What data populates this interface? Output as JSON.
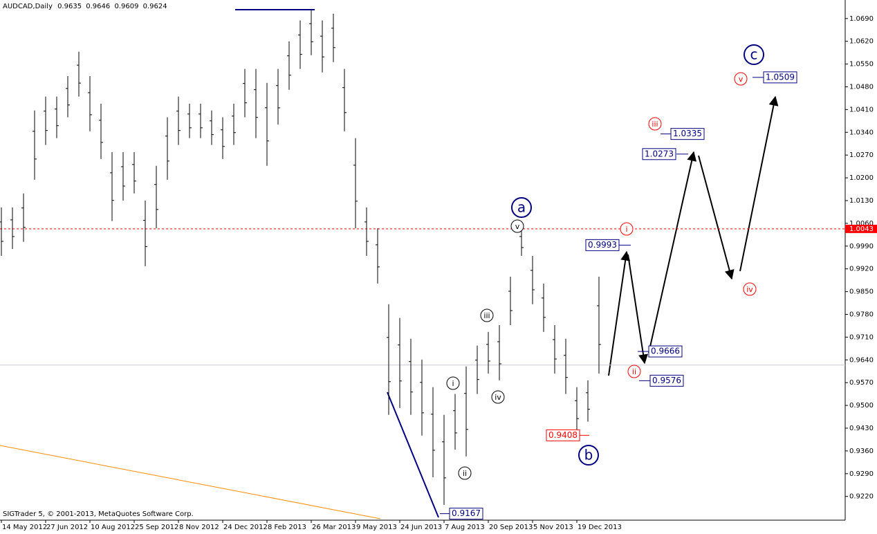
{
  "header": {
    "symbol": "AUDCAD,Daily",
    "open": 0.9635,
    "high": 0.9646,
    "low": 0.9609,
    "close": 0.9624
  },
  "footer": "SIGTrader 5, © 2001-2013, MetaQuotes Software Corp.",
  "chart_data": {
    "type": "ohlc",
    "color": "#000000",
    "categories": [
      "14 May 2012",
      null,
      null,
      null,
      "27 Jun 2012",
      null,
      null,
      null,
      "10 Aug 2012",
      null,
      null,
      null,
      "25 Sep 2012",
      null,
      null,
      null,
      "8 Nov 2012",
      null,
      null,
      null,
      "24 Dec 2012",
      null,
      null,
      null,
      "8 Feb 2013",
      null,
      null,
      null,
      "26 Mar 2013",
      null,
      null,
      null,
      "9 May 2013",
      null,
      null,
      null,
      "24 Jun 2013",
      null,
      null,
      null,
      "7 Aug 2013",
      null,
      null,
      null,
      "20 Sep 2013",
      null,
      null,
      null,
      "5 Nov 2013",
      null,
      null,
      null,
      "19 Dec 2013",
      null,
      null
    ],
    "high": [
      1.0109,
      1.0109,
      1.0152,
      1.0407,
      1.045,
      1.045,
      1.0513,
      1.0588,
      1.0513,
      1.0428,
      1.0279,
      1.0279,
      1.0279,
      1.013,
      1.0237,
      1.0386,
      1.045,
      1.0428,
      1.0428,
      1.0407,
      1.0386,
      1.0428,
      1.0535,
      1.0535,
      1.0492,
      1.0535,
      1.062,
      1.0684,
      1.0716,
      1.0684,
      1.0705,
      1.0535,
      1.0322,
      1.0109,
      1.0045,
      0.9811,
      0.9769,
      0.9705,
      0.9641,
      0.9556,
      0.9471,
      0.9535,
      0.962,
      0.9684,
      0.9726,
      0.9747,
      0.9896,
      1.0045,
      0.996,
      0.9875,
      0.9747,
      0.9705,
      0.9556,
      0.9577,
      0.9896
    ],
    "low": [
      0.996,
      0.9981,
      1.0003,
      1.0194,
      1.0301,
      1.0322,
      1.0386,
      1.045,
      1.0343,
      1.0258,
      1.0067,
      1.013,
      1.0152,
      0.9928,
      1.0045,
      1.0194,
      1.0301,
      1.0322,
      1.0322,
      1.0301,
      1.0258,
      1.0301,
      1.0386,
      1.0322,
      1.0237,
      1.0364,
      1.0471,
      1.0535,
      1.0577,
      1.0524,
      1.0556,
      1.0343,
      1.0045,
      0.996,
      0.9875,
      0.9471,
      0.9492,
      0.9471,
      0.9407,
      0.9279,
      0.9194,
      0.9364,
      0.9343,
      0.9535,
      0.9598,
      0.9577,
      0.9747,
      0.996,
      0.9811,
      0.9726,
      0.9598,
      0.9535,
      0.9418,
      0.945,
      0.9598
    ],
    "ylim": [
      0.9147,
      1.0747
    ],
    "yticks": [
      {
        "value": 1.069,
        "label": "1.0690"
      },
      {
        "value": 1.062,
        "label": "1.0620"
      },
      {
        "value": 1.055,
        "label": "1.0550"
      },
      {
        "value": 1.048,
        "label": "1.0480"
      },
      {
        "value": 1.041,
        "label": "1.0410"
      },
      {
        "value": 1.034,
        "label": "1.0340"
      },
      {
        "value": 1.027,
        "label": "1.0270"
      },
      {
        "value": 1.02,
        "label": "1.0200"
      },
      {
        "value": 1.013,
        "label": "1.0130"
      },
      {
        "value": 1.006,
        "label": "1.0060"
      },
      {
        "value": 0.999,
        "label": "0.9990"
      },
      {
        "value": 0.992,
        "label": "0.9920"
      },
      {
        "value": 0.985,
        "label": "0.9850"
      },
      {
        "value": 0.978,
        "label": "0.9780"
      },
      {
        "value": 0.971,
        "label": "0.9710"
      },
      {
        "value": 0.964,
        "label": "0.9640"
      },
      {
        "value": 0.957,
        "label": "0.9570"
      },
      {
        "value": 0.95,
        "label": "0.9500"
      },
      {
        "value": 0.943,
        "label": "0.9430"
      },
      {
        "value": 0.936,
        "label": "0.9360"
      },
      {
        "value": 0.929,
        "label": "0.9290"
      },
      {
        "value": 0.922,
        "label": "0.9220"
      }
    ],
    "price_line": 1.0043,
    "price_line_color": "#ff0000",
    "price_levels": [
      0.9993,
      1.0273,
      1.0335,
      1.0509,
      0.9666,
      0.9576,
      0.9167
    ],
    "price_levels_color": "#000080",
    "red_price_levels": [
      0.9408
    ],
    "red_price_levels_color": "#ff0000",
    "waves": {
      "major": [
        "a",
        "b",
        "c"
      ],
      "minor": [
        "i",
        "ii",
        "iii",
        "iv",
        "v"
      ],
      "projected": [
        "i",
        "ii",
        "iii",
        "iv",
        "v"
      ]
    }
  }
}
